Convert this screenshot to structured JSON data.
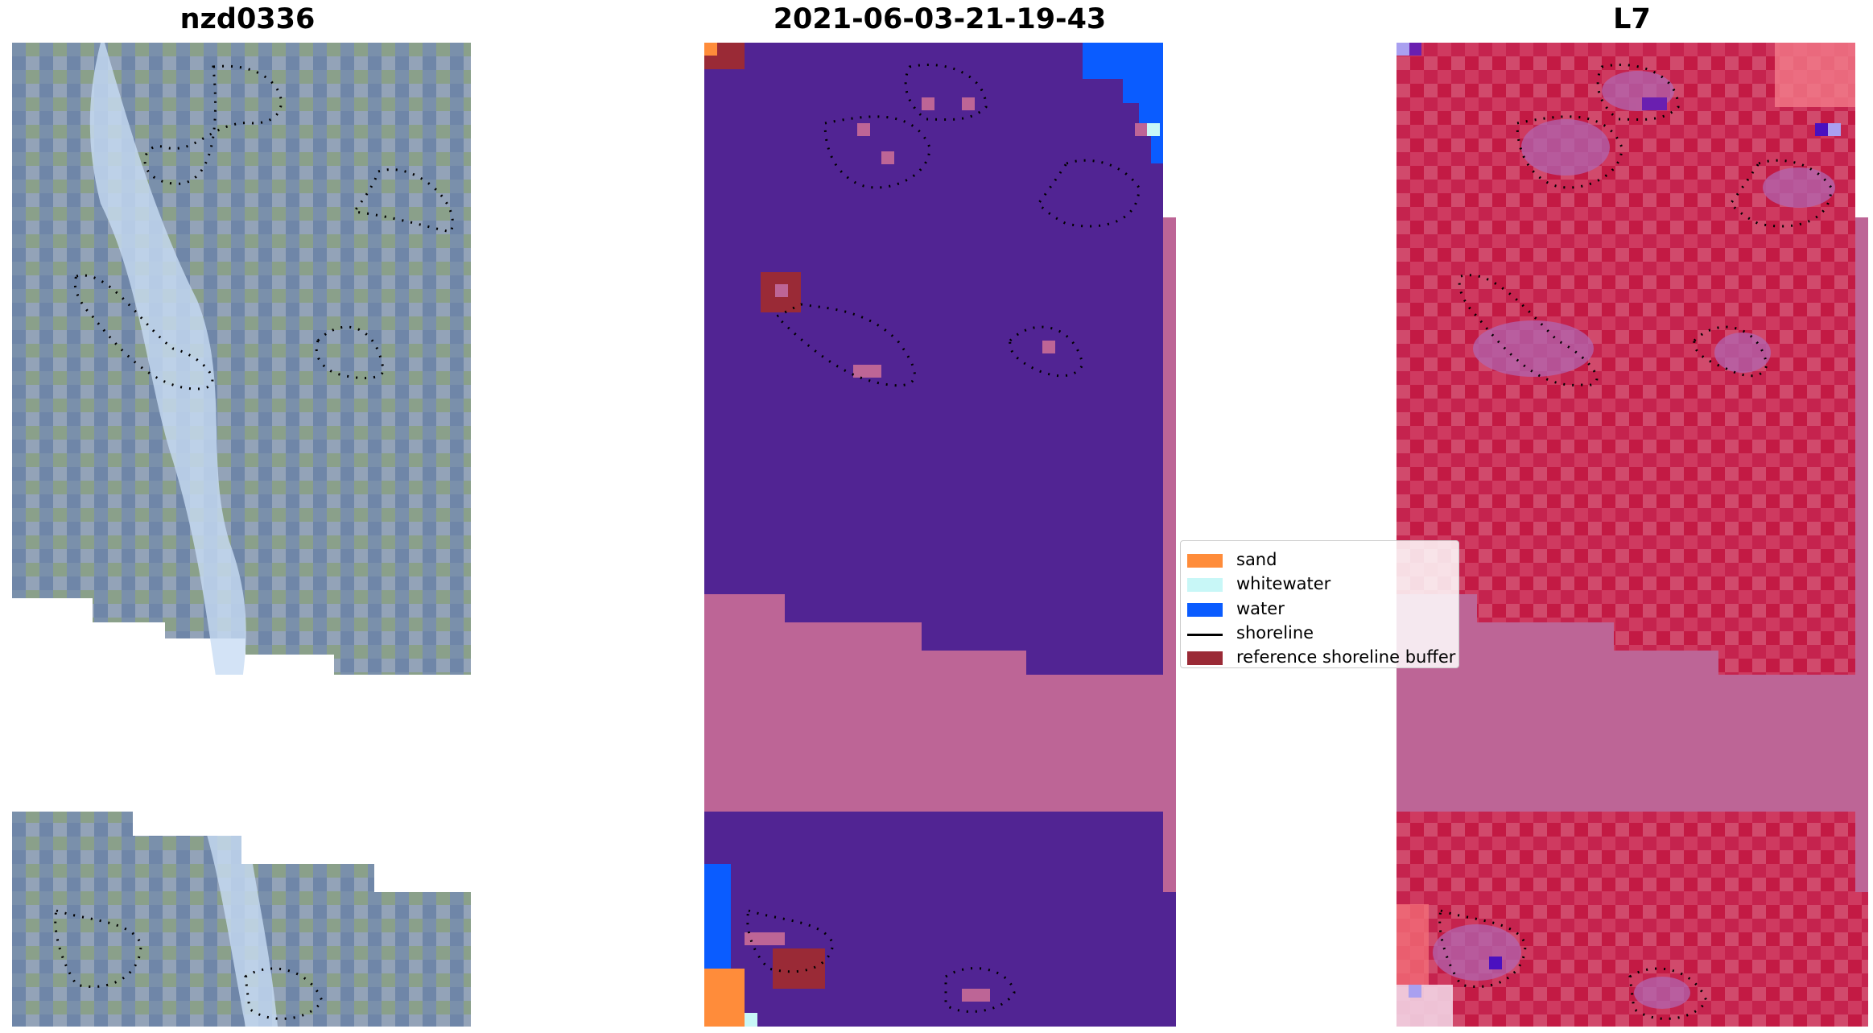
{
  "panels": [
    {
      "title": "nzd0336",
      "kind": "rgb"
    },
    {
      "title": "2021-06-03-21-19-43",
      "kind": "classification"
    },
    {
      "title": "L7",
      "kind": "ndwi"
    }
  ],
  "legend": {
    "items": [
      {
        "label": "sand",
        "color": "#ff8c3a",
        "type": "patch"
      },
      {
        "label": "whitewater",
        "color": "#c8f7f7",
        "type": "patch"
      },
      {
        "label": "water",
        "color": "#0a5cff",
        "type": "patch"
      },
      {
        "label": "shoreline",
        "color": "#000000",
        "type": "line"
      },
      {
        "label": "reference shoreline buffer",
        "color": "#9a2a36",
        "type": "patch"
      }
    ]
  },
  "colors": {
    "classification_background": "#512493",
    "buffer_pink": "#bd6596",
    "ndwi_base": "#c5234e",
    "rgb_base": "#7d93ad"
  }
}
